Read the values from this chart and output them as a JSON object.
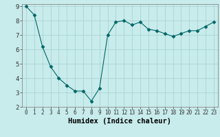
{
  "x": [
    0,
    1,
    2,
    3,
    4,
    5,
    6,
    7,
    8,
    9,
    10,
    11,
    12,
    13,
    14,
    15,
    16,
    17,
    18,
    19,
    20,
    21,
    22,
    23
  ],
  "y": [
    9.0,
    8.4,
    6.2,
    4.8,
    4.0,
    3.5,
    3.1,
    3.1,
    2.4,
    3.3,
    7.0,
    7.9,
    8.0,
    7.7,
    7.9,
    7.4,
    7.3,
    7.1,
    6.9,
    7.1,
    7.3,
    7.3,
    7.6,
    7.9
  ],
  "xlabel": "Humidex (Indice chaleur)",
  "ylim": [
    2,
    9
  ],
  "xlim": [
    -0.5,
    23.5
  ],
  "yticks": [
    2,
    3,
    4,
    5,
    6,
    7,
    8,
    9
  ],
  "xticks": [
    0,
    1,
    2,
    3,
    4,
    5,
    6,
    7,
    8,
    9,
    10,
    11,
    12,
    13,
    14,
    15,
    16,
    17,
    18,
    19,
    20,
    21,
    22,
    23
  ],
  "line_color": "#006666",
  "marker": "D",
  "marker_size": 2.5,
  "bg_color": "#c8ebeb",
  "grid_color": "#aad4d4",
  "xlabel_fontsize": 7.5,
  "tick_fontsize": 5.5,
  "ytick_fontsize": 6.5
}
